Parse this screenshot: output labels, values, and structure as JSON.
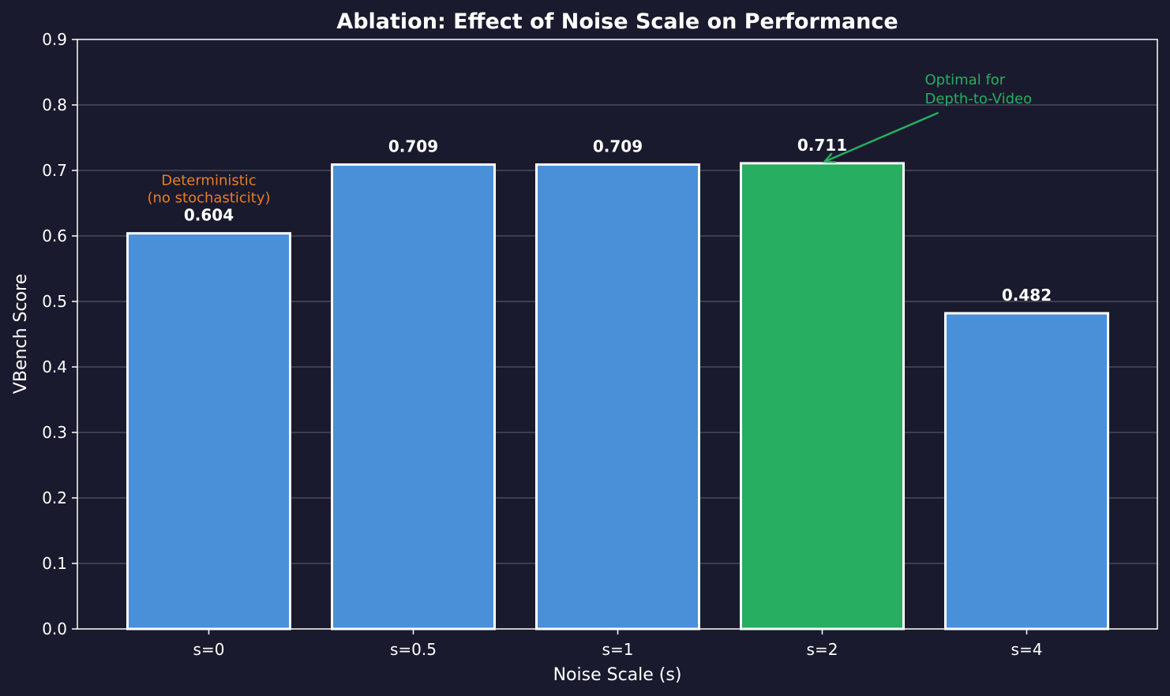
{
  "colors": {
    "background": "#1a1a2e",
    "text": "#ffffff",
    "bar": "#4a90d9",
    "highlight": "#27ae60",
    "bar_edge": "#ffffff",
    "grid": "#4a4a5a",
    "deterministic_note": "#e67e22",
    "optimal_note": "#27ae60"
  },
  "chart_data": {
    "type": "bar",
    "title": "Ablation: Effect of Noise Scale on Performance",
    "xlabel": "Noise Scale (s)",
    "ylabel": "VBench Score",
    "categories": [
      "s=0",
      "s=0.5",
      "s=1",
      "s=2",
      "s=4"
    ],
    "values": [
      0.604,
      0.709,
      0.709,
      0.711,
      0.482
    ],
    "value_labels": [
      "0.604",
      "0.709",
      "0.709",
      "0.711",
      "0.482"
    ],
    "highlight_index": 3,
    "ylim": [
      0,
      0.9
    ],
    "yticks": [
      0.0,
      0.1,
      0.2,
      0.3,
      0.4,
      0.5,
      0.6,
      0.7,
      0.8,
      0.9
    ],
    "ytick_labels": [
      "0.0",
      "0.1",
      "0.2",
      "0.3",
      "0.4",
      "0.5",
      "0.6",
      "0.7",
      "0.8",
      "0.9"
    ],
    "grid": true,
    "annotations": [
      {
        "name": "deterministic-note",
        "lines": [
          "Deterministic",
          "(no stochasticity)"
        ],
        "category_index": 0,
        "color_key": "deterministic_note",
        "arrow": false
      },
      {
        "name": "optimal-note",
        "lines": [
          "Optimal for",
          "Depth-to-Video"
        ],
        "category_index": 3,
        "color_key": "optimal_note",
        "arrow": true
      }
    ]
  }
}
